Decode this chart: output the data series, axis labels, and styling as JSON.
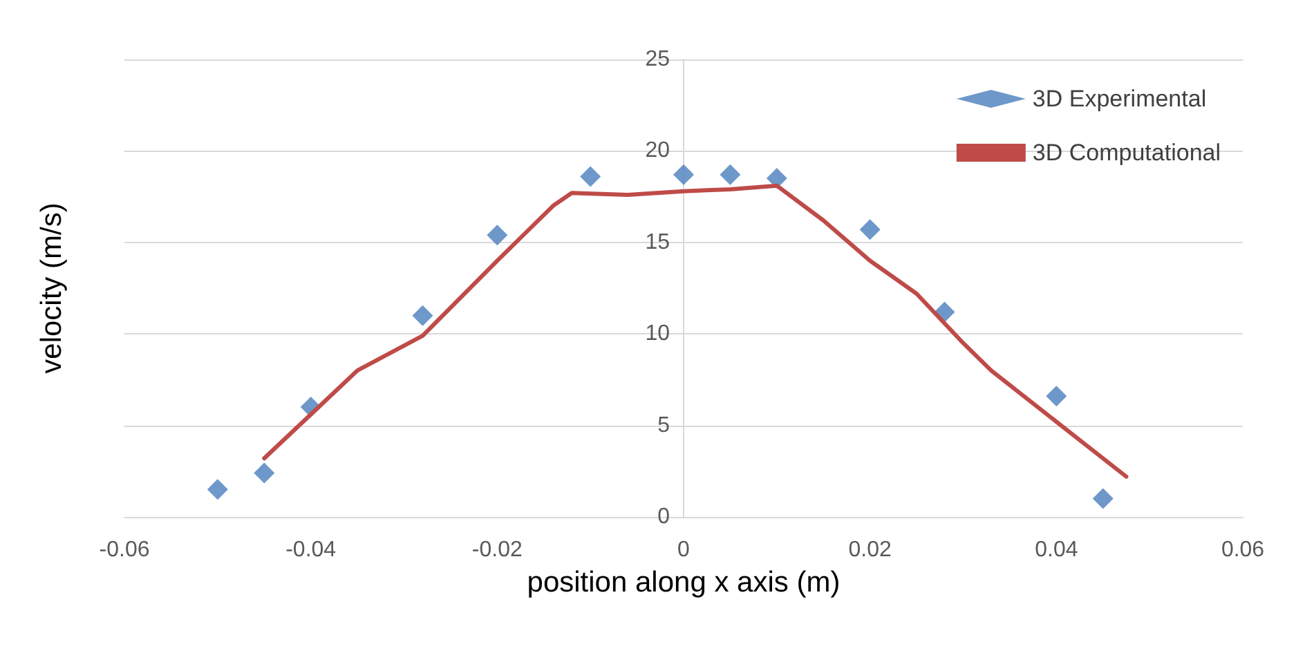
{
  "chart_data": {
    "type": "scatter",
    "xlabel": "position along x axis (m)",
    "ylabel": "velocity (m/s)",
    "xlim": [
      -0.06,
      0.06
    ],
    "xticks": [
      -0.06,
      -0.04,
      -0.02,
      0,
      0.02,
      0.04,
      0.06
    ],
    "ylim": [
      0,
      25
    ],
    "yticks": [
      0,
      5,
      10,
      15,
      20,
      25
    ],
    "grid": "y",
    "legend": "top right",
    "series": [
      {
        "name": "3D Experimental",
        "type": "scatter",
        "marker": "diamond",
        "color": "#4a7ebb",
        "x": [
          -0.05,
          -0.045,
          -0.04,
          -0.028,
          -0.02,
          -0.01,
          0,
          0.005,
          0.01,
          0.02,
          0.028,
          0.04,
          0.045
        ],
        "values": [
          1.5,
          2.4,
          6.0,
          11.0,
          15.4,
          18.6,
          18.7,
          18.7,
          18.5,
          15.7,
          11.2,
          6.6,
          1.0
        ]
      },
      {
        "name": "3D Computational",
        "type": "line",
        "marker": "none",
        "line_style": "solid",
        "color": "#be4b48",
        "x": [
          -0.045,
          -0.04,
          -0.035,
          -0.028,
          -0.02,
          -0.014,
          -0.012,
          -0.006,
          0,
          0.005,
          0.01,
          0.015,
          0.02,
          0.025,
          0.03,
          0.033,
          0.04,
          0.0475
        ],
        "values": [
          3.2,
          5.6,
          8.0,
          9.9,
          14.0,
          17.0,
          17.7,
          17.6,
          17.8,
          17.9,
          18.1,
          16.2,
          14.0,
          12.2,
          9.5,
          8.0,
          5.2,
          2.2
        ]
      }
    ]
  }
}
